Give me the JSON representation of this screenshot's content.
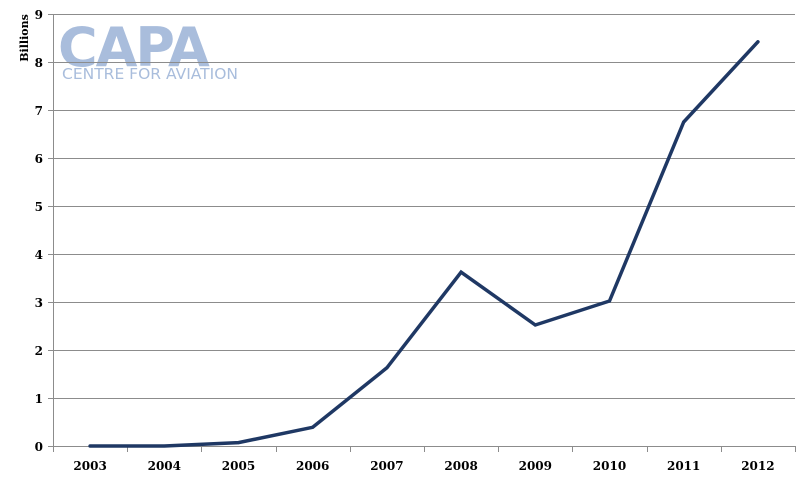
{
  "watermark": {
    "brand": "CAPA",
    "tagline": "CENTRE FOR AVIATION"
  },
  "chart_data": {
    "type": "line",
    "title": "",
    "xlabel": "",
    "ylabel": "Billions",
    "x": [
      "2003",
      "2004",
      "2005",
      "2006",
      "2007",
      "2008",
      "2009",
      "2010",
      "2011",
      "2012"
    ],
    "series": [
      {
        "values": [
          0.0,
          0.0,
          0.07,
          0.39,
          1.63,
          3.62,
          2.52,
          3.02,
          6.75,
          8.42
        ],
        "color": "#1f3864"
      }
    ],
    "ylim": [
      0,
      9
    ],
    "yticks": [
      0,
      1,
      2,
      3,
      4,
      5,
      6,
      7,
      8,
      9
    ],
    "grid": true,
    "legend": "none"
  }
}
